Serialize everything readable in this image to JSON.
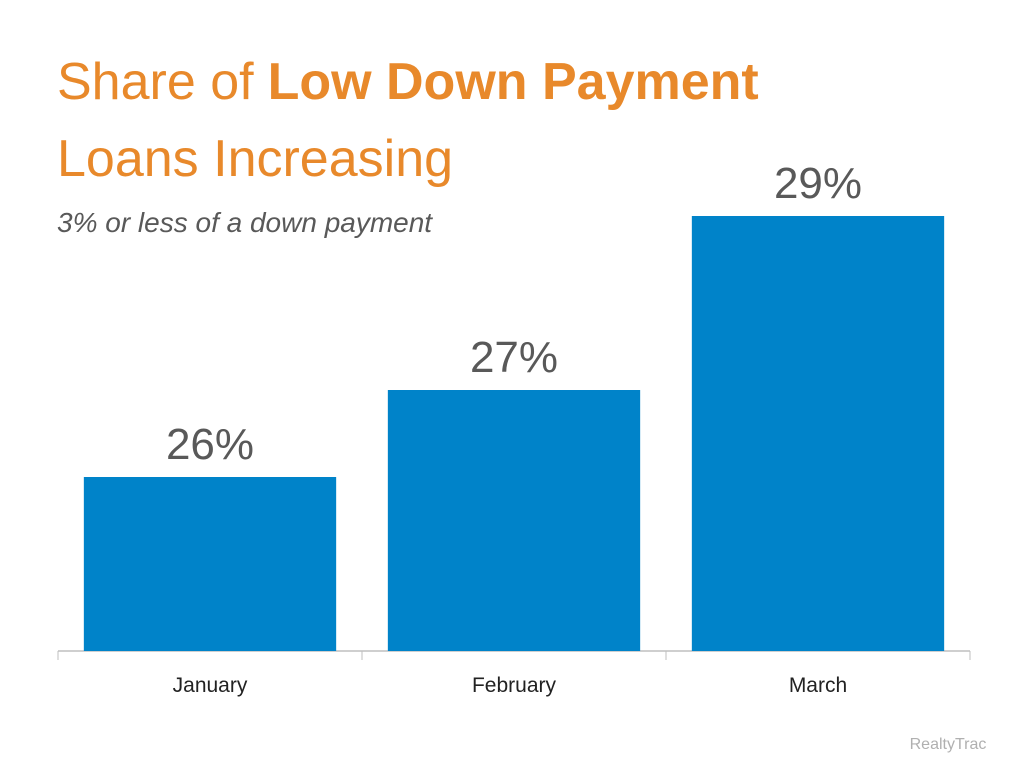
{
  "chart_data": {
    "type": "bar",
    "title": [
      "Share of",
      "Low Down Payment",
      "Loans Increasing"
    ],
    "subtitle": "3% or less of a down payment",
    "categories": [
      "January",
      "February",
      "March"
    ],
    "values": [
      26,
      27,
      29
    ],
    "value_labels": [
      "26%",
      "27%",
      "29%"
    ],
    "color": "#0083c9",
    "ylim": [
      24,
      30
    ],
    "source": "RealtyTrac"
  }
}
